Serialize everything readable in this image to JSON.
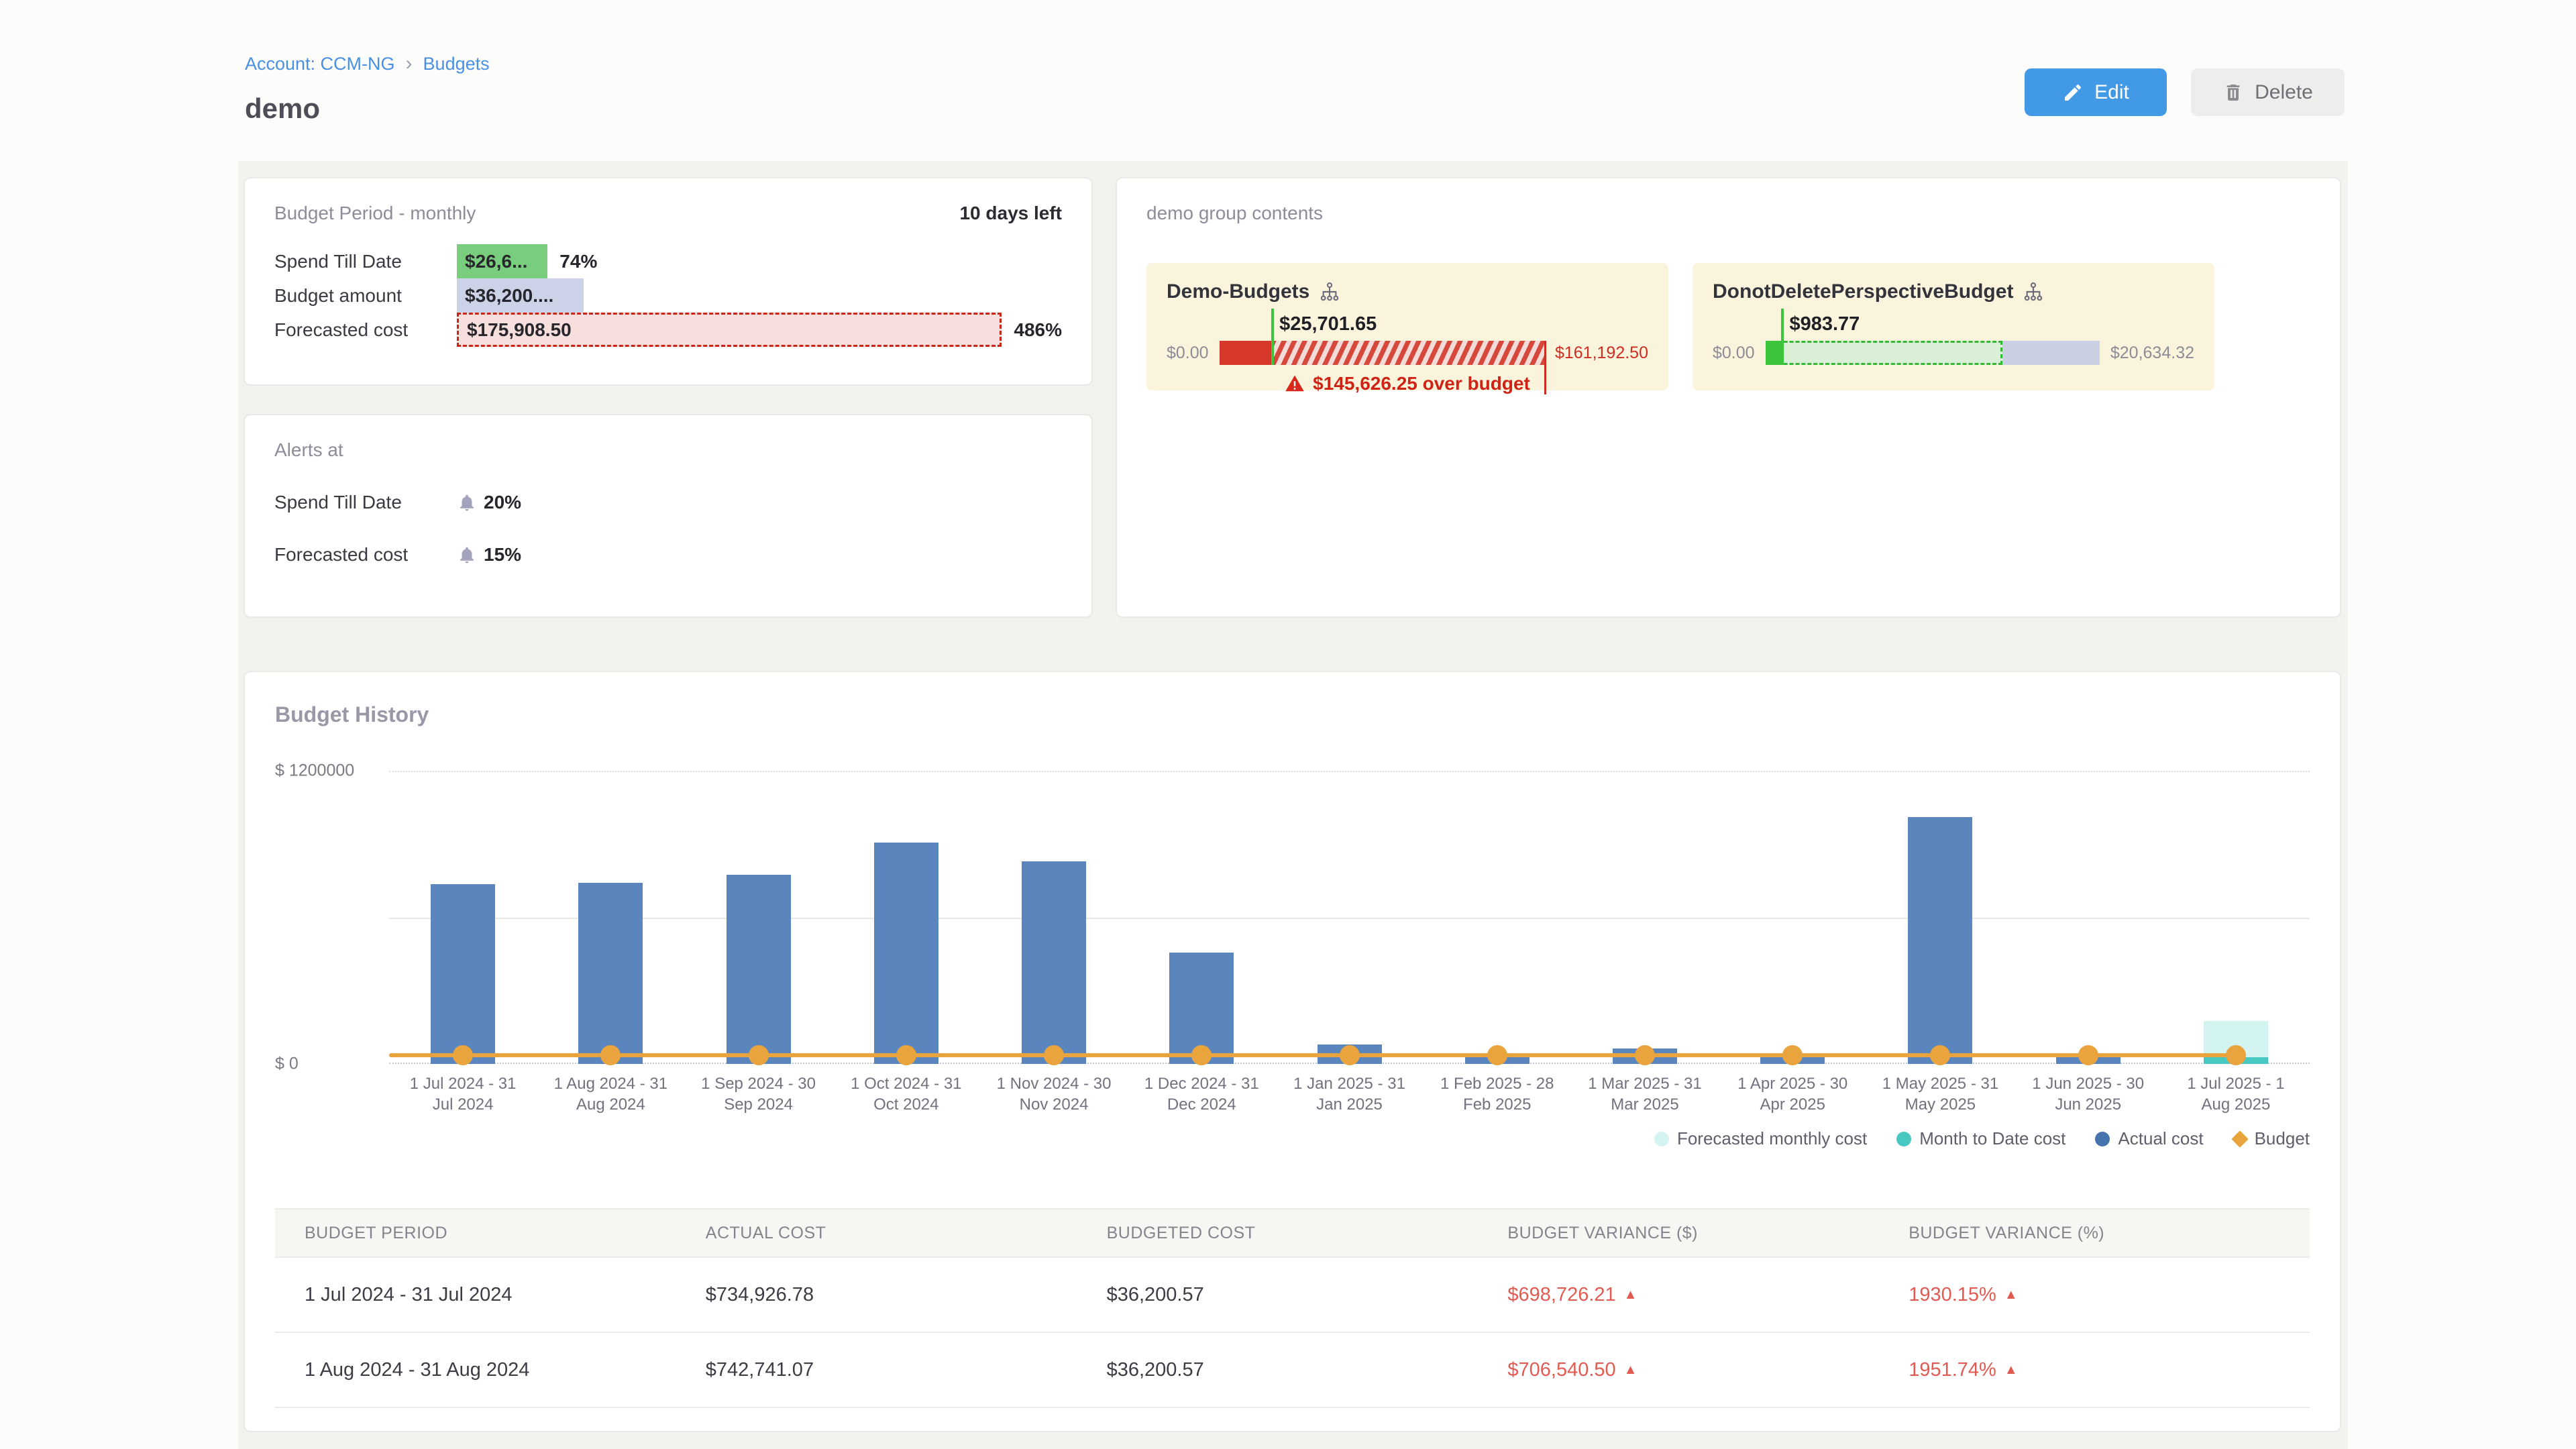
{
  "breadcrumb": {
    "account": "Account: CCM-NG",
    "separator": "›",
    "page": "Budgets"
  },
  "page_title": "demo",
  "toolbar": {
    "edit": "Edit",
    "delete": "Delete"
  },
  "budget_period_card": {
    "title": "Budget Period - monthly",
    "days_left": "10 days left",
    "rows": [
      {
        "label": "Spend Till Date",
        "value": "$26,6...",
        "percent": "74%",
        "width_pct": 15
      },
      {
        "label": "Budget amount",
        "value": "$36,200....",
        "percent": "",
        "width_pct": 21
      },
      {
        "label": "Forecasted cost",
        "value": "$175,908.50",
        "percent": "486%",
        "width_pct": 100
      }
    ]
  },
  "alerts_card": {
    "title": "Alerts at",
    "rows": [
      {
        "label": "Spend Till Date",
        "value": "20%"
      },
      {
        "label": "Forecasted cost",
        "value": "15%"
      }
    ]
  },
  "group_card": {
    "title": "demo group contents",
    "budgets": [
      {
        "name": "Demo-Budgets",
        "left_label": "$0.00",
        "right_label": "$161,192.50",
        "marker_label": "$25,701.65",
        "marker_pct": 16,
        "solid_pct": 16,
        "overage_text": "$145,626.25 over budget"
      },
      {
        "name": "DonotDeletePerspectiveBudget",
        "left_label": "$0.00",
        "right_label": "$20,634.32",
        "marker_label": "$983.77",
        "marker_pct": 4.8,
        "solid_pct": 4.8,
        "forecast_pct": 71
      }
    ]
  },
  "chart_data": {
    "type": "bar",
    "title": "Budget History",
    "ylabel_top": "$ 1200000",
    "ylabel_zero": "$ 0",
    "ymax": 1200000,
    "gridlines": [
      0,
      600000,
      1200000
    ],
    "legend_position": "bottom-right",
    "legend": [
      {
        "label": "Forecasted monthly cost",
        "color": "#d4f4f1",
        "shape": "circle"
      },
      {
        "label": "Month to Date cost",
        "color": "#49c8c2",
        "shape": "circle"
      },
      {
        "label": "Actual cost",
        "color": "#4672ae",
        "shape": "circle"
      },
      {
        "label": "Budget",
        "color": "#e9a43e",
        "shape": "diamond"
      }
    ],
    "categories": [
      [
        "1 Jul 2024 - 31",
        "Jul 2024"
      ],
      [
        "1 Aug 2024 - 31",
        "Aug 2024"
      ],
      [
        "1 Sep 2024 - 30",
        "Sep 2024"
      ],
      [
        "1 Oct 2024 - 31",
        "Oct 2024"
      ],
      [
        "1 Nov 2024 - 30",
        "Nov 2024"
      ],
      [
        "1 Dec 2024 - 31",
        "Dec 2024"
      ],
      [
        "1 Jan 2025 - 31",
        "Jan 2025"
      ],
      [
        "1 Feb 2025 - 28",
        "Feb 2025"
      ],
      [
        "1 Mar 2025 - 31",
        "Mar 2025"
      ],
      [
        "1 Apr 2025 - 30",
        "Apr 2025"
      ],
      [
        "1 May 2025 - 31",
        "May 2025"
      ],
      [
        "1 Jun 2025 - 30",
        "Jun 2025"
      ],
      [
        "1 Jul 2025 - 1",
        "Aug 2025"
      ]
    ],
    "series": [
      {
        "name": "Actual cost",
        "type": "bar",
        "color": "#5b86bd",
        "values": [
          734926.78,
          742741.07,
          775000,
          905000,
          830000,
          455000,
          80000,
          35000,
          62000,
          35000,
          1010000,
          35000,
          0
        ]
      },
      {
        "name": "Month to Date cost",
        "type": "bar",
        "color": "#49c8c2",
        "values": [
          0,
          0,
          0,
          0,
          0,
          0,
          0,
          0,
          0,
          0,
          0,
          0,
          26636
        ]
      },
      {
        "name": "Forecasted monthly cost",
        "type": "bar",
        "color": "#d4f4f1",
        "values": [
          0,
          0,
          0,
          0,
          0,
          0,
          0,
          0,
          0,
          0,
          0,
          0,
          175908.5
        ]
      },
      {
        "name": "Budget",
        "type": "line",
        "color": "#e9a43e",
        "values": [
          36200.57,
          36200.57,
          36200.57,
          36200.57,
          36200.57,
          36200.57,
          36200.57,
          36200.57,
          36200.57,
          36200.57,
          36200.57,
          36200.57,
          36200.57
        ]
      }
    ]
  },
  "history_table": {
    "headers": [
      "BUDGET PERIOD",
      "ACTUAL COST",
      "BUDGETED COST",
      "BUDGET VARIANCE ($)",
      "BUDGET VARIANCE (%)"
    ],
    "up_arrow": "▲",
    "rows": [
      {
        "period": "1 Jul 2024 - 31 Jul 2024",
        "actual": "$734,926.78",
        "budgeted": "$36,200.57",
        "variance_usd": "$698,726.21",
        "variance_pct": "1930.15%"
      },
      {
        "period": "1 Aug 2024 - 31 Aug 2024",
        "actual": "$742,741.07",
        "budgeted": "$36,200.57",
        "variance_usd": "$706,540.50",
        "variance_pct": "1951.74%"
      }
    ]
  },
  "colors": {
    "accent_blue": "#429ae6",
    "link_blue": "#4a90e2",
    "bar_actual": "#5b86bd",
    "month_to_date_teal": "#49c8c2",
    "forecast_cyan": "#d4f4f1",
    "budget_orange": "#e9a43e",
    "spend_green": "#79ce7d",
    "budget_chip_gray": "#ccd3e8",
    "over_budget_red": "#cf2316",
    "variance_red": "#e15b52",
    "mini_card_bg": "#fbf4dd",
    "page_backdrop": "#f2f2ee"
  }
}
